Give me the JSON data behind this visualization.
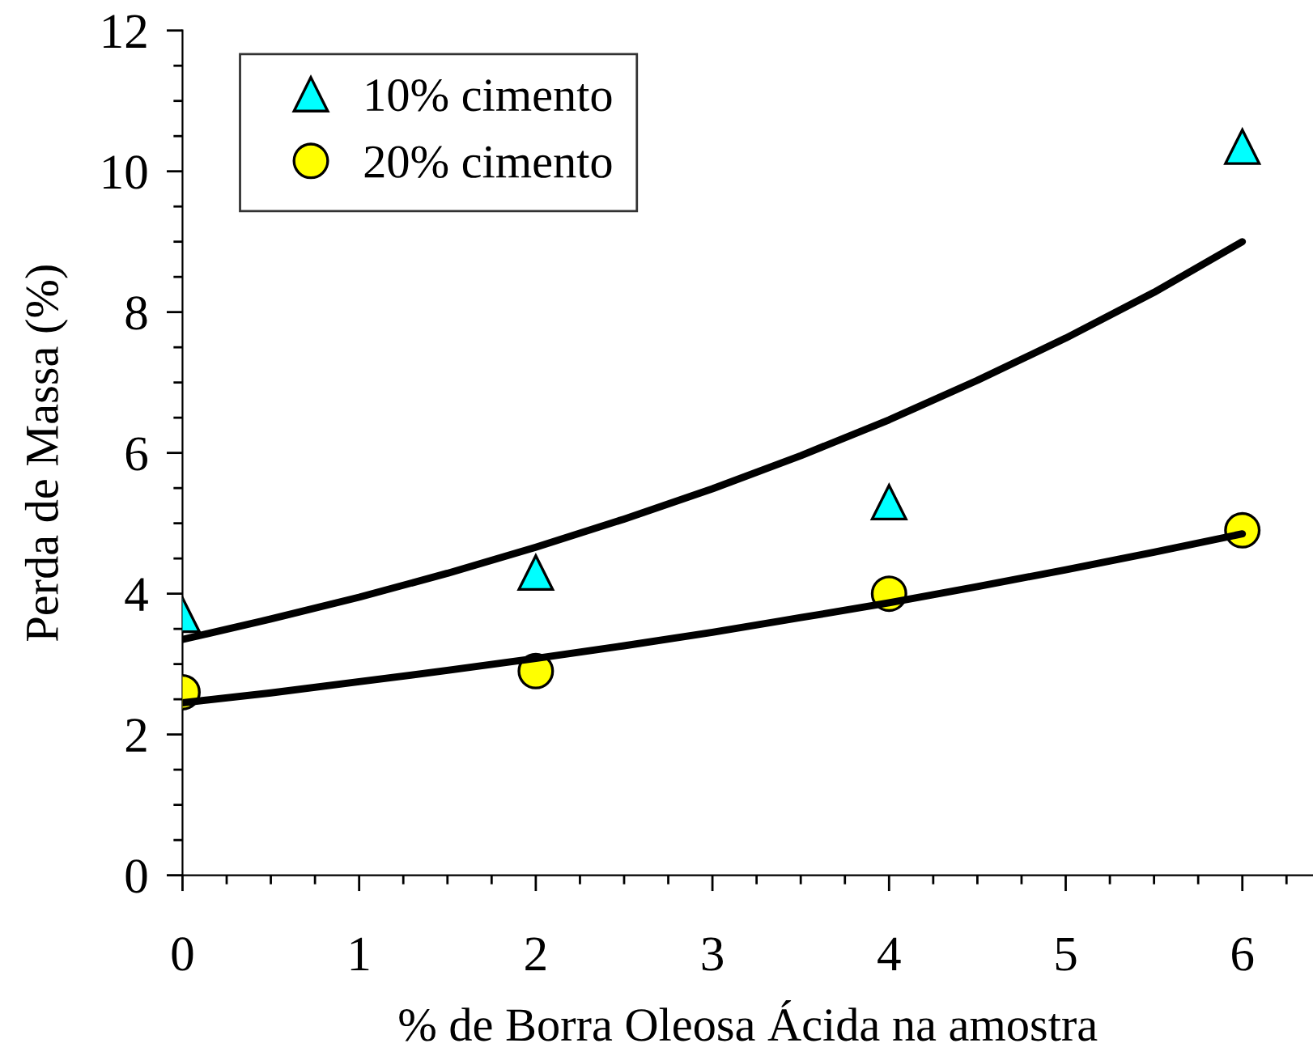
{
  "chart_data": {
    "type": "scatter",
    "xlabel": "% de Borra Oleosa Ácida na amostra",
    "ylabel": "Perda de Massa (%)",
    "xlim": [
      0,
      6.4
    ],
    "ylim": [
      0,
      12
    ],
    "xticks": [
      0,
      {
        "value": 0.25,
        "label": null
      },
      {
        "value": 0.5,
        "label": null
      },
      {
        "value": 0.75,
        "label": null
      },
      1,
      {
        "value": 1.25,
        "label": null
      },
      {
        "value": 1.5,
        "label": null
      },
      {
        "value": 1.75,
        "label": null
      },
      2,
      {
        "value": 2.25,
        "label": null
      },
      {
        "value": 2.5,
        "label": null
      },
      {
        "value": 2.75,
        "label": null
      },
      3,
      {
        "value": 3.25,
        "label": null
      },
      {
        "value": 3.5,
        "label": null
      },
      {
        "value": 3.75,
        "label": null
      },
      4,
      {
        "value": 4.25,
        "label": null
      },
      {
        "value": 4.5,
        "label": null
      },
      {
        "value": 4.75,
        "label": null
      },
      5,
      {
        "value": 5.25,
        "label": null
      },
      {
        "value": 5.5,
        "label": null
      },
      {
        "value": 5.75,
        "label": null
      },
      6,
      {
        "value": 6.25,
        "label": null
      }
    ],
    "yticks": [
      0,
      {
        "value": 0.5,
        "label": null
      },
      {
        "value": 1,
        "label": null
      },
      {
        "value": 1.5,
        "label": null
      },
      2,
      {
        "value": 2.5,
        "label": null
      },
      {
        "value": 3,
        "label": null
      },
      {
        "value": 3.5,
        "label": null
      },
      4,
      {
        "value": 4.5,
        "label": null
      },
      {
        "value": 5,
        "label": null
      },
      {
        "value": 5.5,
        "label": null
      },
      6,
      {
        "value": 6.5,
        "label": null
      },
      {
        "value": 7,
        "label": null
      },
      {
        "value": 7.5,
        "label": null
      },
      8,
      {
        "value": 8.5,
        "label": null
      },
      {
        "value": 9,
        "label": null
      },
      {
        "value": 9.5,
        "label": null
      },
      10,
      {
        "value": 10.5,
        "label": null
      },
      {
        "value": 11,
        "label": null
      },
      {
        "value": 11.5,
        "label": null
      },
      12
    ],
    "grid": false,
    "legend": "top left",
    "series": [
      {
        "name": "10% cimento",
        "type": "scatter",
        "marker": "triangle",
        "color": "#00ffff",
        "x": [
          0,
          2,
          4,
          6
        ],
        "values": [
          3.7,
          4.3,
          5.3,
          10.35
        ]
      },
      {
        "name": "20% cimento",
        "type": "scatter",
        "marker": "circle",
        "color": "#ffff00",
        "x": [
          0,
          2,
          4,
          6
        ],
        "values": [
          2.6,
          2.9,
          4.0,
          4.9
        ]
      },
      {
        "type": "line",
        "color": "#000000",
        "marker": "none",
        "line_style": "solid",
        "x": [
          0,
          0.5,
          1,
          1.5,
          2,
          2.5,
          3,
          3.5,
          4,
          4.5,
          5,
          5.5,
          6
        ],
        "values": [
          3.35,
          3.64,
          3.95,
          4.29,
          4.66,
          5.06,
          5.49,
          5.96,
          6.47,
          7.03,
          7.63,
          8.28,
          9.0
        ]
      },
      {
        "type": "line",
        "color": "#000000",
        "marker": "none",
        "line_style": "solid",
        "x": [
          0,
          0.5,
          1,
          1.5,
          2,
          2.5,
          3,
          3.5,
          4,
          4.5,
          5,
          5.5,
          6
        ],
        "values": [
          2.45,
          2.59,
          2.75,
          2.91,
          3.08,
          3.26,
          3.45,
          3.66,
          3.87,
          4.1,
          4.34,
          4.59,
          4.85
        ]
      }
    ]
  }
}
